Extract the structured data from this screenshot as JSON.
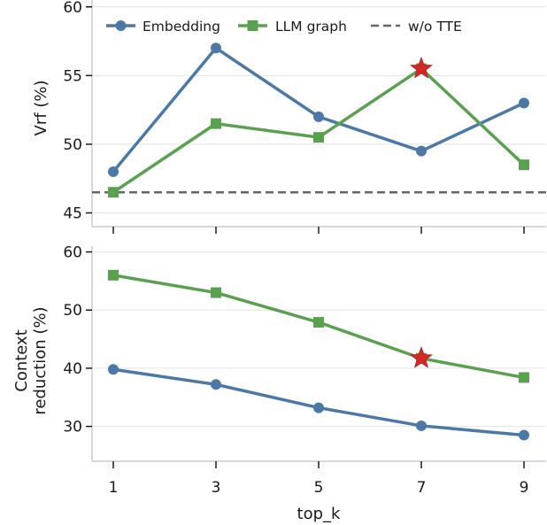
{
  "chart_data": [
    {
      "type": "line",
      "ylabel": "Vrf (%)",
      "x": [
        1,
        3,
        5,
        7,
        9
      ],
      "ylim": [
        44,
        60.5
      ],
      "yticks": [
        "45",
        "50",
        "55",
        "60"
      ],
      "grid": "horizontal",
      "legend": "top",
      "series": [
        {
          "name": "Embedding",
          "values": [
            48,
            57,
            52,
            49.5,
            53
          ],
          "color": "#4c78a8",
          "marker": "circle"
        },
        {
          "name": "LLM graph",
          "values": [
            46.5,
            51.5,
            50.5,
            55.5,
            48.5
          ],
          "color": "#59a14f",
          "marker": "square"
        }
      ],
      "reference_line": {
        "name": "w/o TTE",
        "value": 46.5,
        "color": "#666666",
        "style": "dashed"
      },
      "highlight": {
        "x": 7,
        "value": 55.5,
        "marker": "star",
        "color": "#d62728"
      }
    },
    {
      "type": "line",
      "ylabel": "Context reduction (%)",
      "ylabel_lines": [
        "Context",
        "reduction (%)"
      ],
      "xlabel": "top_k",
      "x": [
        1,
        3,
        5,
        7,
        9
      ],
      "xticks": [
        "1",
        "3",
        "5",
        "7",
        "9"
      ],
      "ylim": [
        24,
        61
      ],
      "yticks": [
        "30",
        "40",
        "50",
        "60"
      ],
      "grid": "horizontal",
      "series": [
        {
          "name": "Embedding",
          "values": [
            39.8,
            37.2,
            33.2,
            30.1,
            28.5
          ],
          "color": "#4c78a8",
          "marker": "circle"
        },
        {
          "name": "LLM graph",
          "values": [
            56,
            53,
            47.9,
            41.7,
            38.4
          ],
          "color": "#59a14f",
          "marker": "square"
        }
      ],
      "highlight": {
        "x": 7,
        "value": 41.7,
        "marker": "star",
        "color": "#d62728"
      }
    }
  ]
}
